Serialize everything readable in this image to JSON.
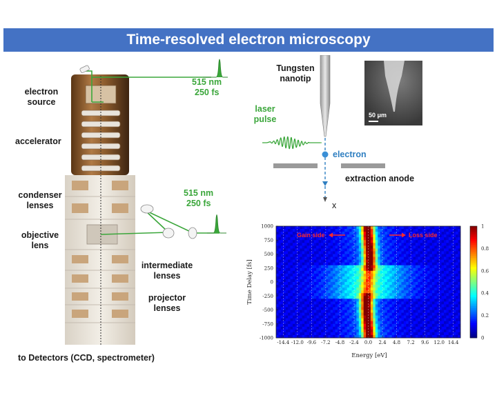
{
  "title": "Time-resolved electron microscopy",
  "column_labels": {
    "electron_source": "electron\nsource",
    "accelerator": "accelerator",
    "condenser": "condenser\nlenses",
    "objective": "objective\nlens",
    "intermediate": "intermediate\nlenses",
    "projector": "projector\nlenses",
    "detectors": "to Detectors (CCD, spectrometer)"
  },
  "laser_top": {
    "wavelength": "515 nm",
    "duration": "250 fs"
  },
  "laser_mid": {
    "wavelength": "515 nm",
    "duration": "250 fs"
  },
  "tip_schematic": {
    "tip_label": "Tungsten\nnanotip",
    "laser_pulse": "laser\npulse",
    "electron": "electron",
    "anode": "extraction anode",
    "axis": "x",
    "sem_scale": "50 μm"
  },
  "colors": {
    "banner": "#4472c4",
    "laser_green": "#3aa63a",
    "electron_blue": "#2f7fc1",
    "annotation_red": "#ff2a2a"
  },
  "chart_data": {
    "type": "heatmap",
    "xlabel": "Energy [eV]",
    "ylabel": "Time Delay [fs]",
    "xlim": [
      -15.6,
      15.6
    ],
    "ylim": [
      -1000,
      1000
    ],
    "xticks": [
      -14.4,
      -12.0,
      -9.6,
      -7.2,
      -4.8,
      -2.4,
      0.0,
      2.4,
      4.8,
      7.2,
      9.6,
      12.0,
      14.4
    ],
    "xtick_labels": [
      "-14.4",
      "-12.0",
      "-9.6",
      "-7.2",
      "-4.8",
      "-2.4",
      "0.0",
      "2.4",
      "4.8",
      "7.2",
      "9.6",
      "12.0",
      "14.4"
    ],
    "yticks": [
      1000,
      750,
      500,
      250,
      0,
      -250,
      -500,
      -750,
      -1000
    ],
    "ytick_labels": [
      "1000",
      "750",
      "500",
      "250",
      "0",
      "-250",
      "-500",
      "-750",
      "-1000"
    ],
    "colorbar": {
      "min": 0,
      "max": 1,
      "ticks": [
        0,
        0.2,
        0.4,
        0.6,
        0.8,
        1
      ],
      "tick_labels": [
        "0",
        "0.2",
        "0.4",
        "0.6",
        "0.8",
        "1"
      ]
    },
    "annotations": {
      "gain": "Gain side",
      "loss": "Loss side"
    },
    "grid": "vertical dashed"
  }
}
